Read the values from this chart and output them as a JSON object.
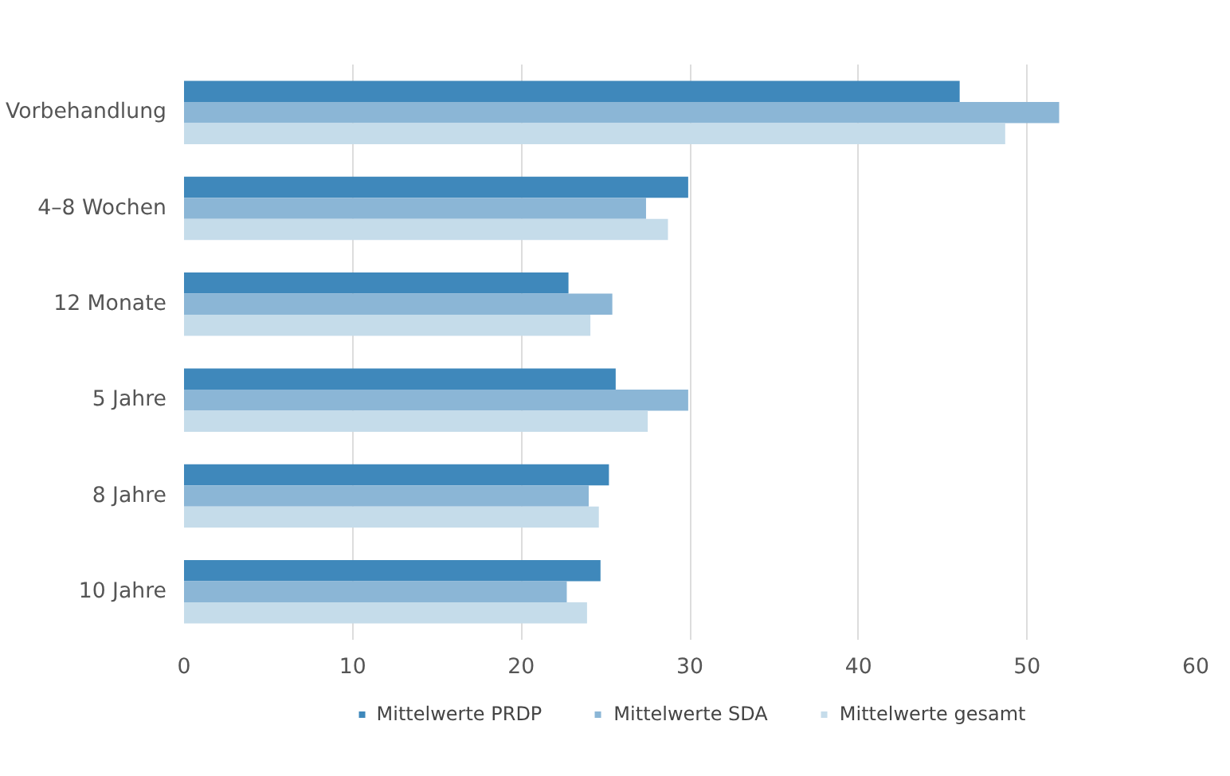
{
  "chart_data": {
    "type": "bar",
    "orientation": "horizontal",
    "categories": [
      "Vorbehandlung",
      "4–8 Wochen",
      "12 Monate",
      "5 Jahre",
      "8 Jahre",
      "10 Jahre"
    ],
    "series": [
      {
        "name": "Mittelwerte PRDP",
        "color": "#3f88bb",
        "values": [
          46.0,
          29.9,
          22.8,
          25.6,
          25.2,
          24.7
        ]
      },
      {
        "name": "Mittelwerte SDA",
        "color": "#8bb6d6",
        "values": [
          51.9,
          27.4,
          25.4,
          29.9,
          24.0,
          22.7
        ]
      },
      {
        "name": "Mittelwerte gesamt",
        "color": "#c5dcea",
        "values": [
          48.7,
          28.7,
          24.1,
          27.5,
          24.6,
          23.9
        ]
      }
    ],
    "xlim": [
      0,
      60
    ],
    "xticks": [
      0,
      10,
      20,
      30,
      40,
      50,
      60
    ],
    "grid": "x",
    "legend": "bottom"
  }
}
